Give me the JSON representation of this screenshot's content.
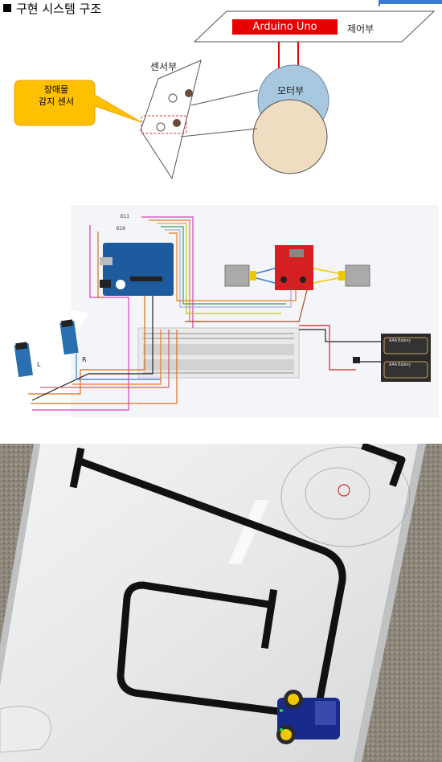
{
  "section1": {
    "title": "구현 시스템 구조",
    "controller_chip": "Arduino Uno",
    "controller_label": "제어부",
    "motor_label": "모터부",
    "sensor_label": "센서부",
    "callout_line1": "장애물",
    "callout_line2": "감지 센서"
  },
  "section2": {
    "wire_d11": "D11",
    "wire_d10": "D10",
    "sensor_left": "L",
    "sensor_right": "R",
    "battery1": "AAA Battery",
    "battery2": "AAA Battery"
  },
  "colors": {
    "callout_fill": "#ffc000",
    "callout_border": "#f0a000",
    "chip_red": "#e60000",
    "motor_blue": "#a8c8e0",
    "wheel_beige": "#f0dcc0",
    "arduino_blue": "#1e5a9e",
    "driver_red": "#d42020",
    "tape_black": "#111111"
  }
}
